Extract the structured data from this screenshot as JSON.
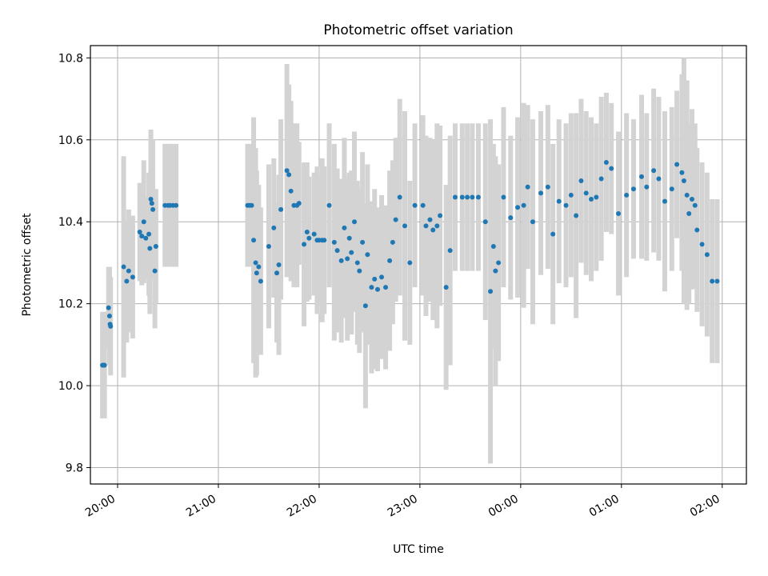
{
  "chart_data": {
    "type": "scatter",
    "title": "Photometric offset variation",
    "xlabel": "UTC time",
    "ylabel": "Photometric offset",
    "x_ticks": [
      "20:00",
      "21:00",
      "22:00",
      "23:00",
      "00:00",
      "01:00",
      "02:00"
    ],
    "y_ticks": [
      "9.8",
      "10.0",
      "10.2",
      "10.4",
      "10.6",
      "10.8"
    ],
    "xlim_hours": [
      19.73,
      26.24
    ],
    "ylim": [
      9.76,
      10.83
    ],
    "grid": true,
    "colors": {
      "point": "#1f77b4",
      "errorbar": "#d3d3d3"
    },
    "series": [
      {
        "x_hours": [
          19.85,
          19.86,
          19.87,
          19.91,
          19.92,
          19.925,
          19.93,
          20.06,
          20.09,
          20.11,
          20.15,
          20.22,
          20.24,
          20.26,
          20.28,
          20.31,
          20.32,
          20.33,
          20.34,
          20.35,
          20.37,
          20.38,
          20.47,
          20.5,
          20.52,
          20.55,
          20.58,
          21.29,
          21.31,
          21.33,
          21.35,
          21.37,
          21.38,
          21.4,
          21.42,
          21.5,
          21.55,
          21.58,
          21.6,
          21.62,
          21.68,
          21.7,
          21.72,
          21.75,
          21.78,
          21.8,
          21.85,
          21.88,
          21.9,
          21.95,
          21.98,
          22.0,
          22.03,
          22.05,
          22.1,
          22.15,
          22.18,
          22.22,
          22.25,
          22.28,
          22.3,
          22.32,
          22.35,
          22.38,
          22.4,
          22.43,
          22.46,
          22.48,
          22.52,
          22.55,
          22.58,
          22.62,
          22.66,
          22.7,
          22.73,
          22.76,
          22.8,
          22.85,
          22.9,
          22.95,
          23.03,
          23.06,
          23.1,
          23.13,
          23.17,
          23.2,
          23.26,
          23.3,
          23.35,
          23.42,
          23.47,
          23.52,
          23.58,
          23.65,
          23.7,
          23.73,
          23.75,
          23.78,
          23.83,
          23.9,
          23.97,
          24.03,
          24.07,
          24.12,
          24.2,
          24.27,
          24.32,
          24.38,
          24.45,
          24.5,
          24.55,
          24.6,
          24.65,
          24.7,
          24.75,
          24.8,
          24.85,
          24.9,
          24.97,
          25.05,
          25.12,
          25.2,
          25.25,
          25.32,
          25.37,
          25.43,
          25.5,
          25.55,
          25.6,
          25.62,
          25.65,
          25.67,
          25.7,
          25.73,
          25.75,
          25.8,
          25.85,
          25.9,
          25.95
        ],
        "y": [
          10.05,
          10.05,
          10.05,
          10.19,
          10.17,
          10.15,
          10.145,
          10.29,
          10.255,
          10.28,
          10.265,
          10.375,
          10.365,
          10.4,
          10.36,
          10.37,
          10.335,
          10.455,
          10.445,
          10.43,
          10.28,
          10.34,
          10.44,
          10.44,
          10.44,
          10.44,
          10.44,
          10.44,
          10.44,
          10.44,
          10.355,
          10.3,
          10.275,
          10.29,
          10.255,
          10.34,
          10.385,
          10.275,
          10.295,
          10.43,
          10.525,
          10.515,
          10.475,
          10.44,
          10.44,
          10.445,
          10.345,
          10.375,
          10.36,
          10.37,
          10.355,
          10.355,
          10.355,
          10.355,
          10.44,
          10.35,
          10.33,
          10.305,
          10.385,
          10.31,
          10.36,
          10.325,
          10.4,
          10.3,
          10.28,
          10.35,
          10.195,
          10.32,
          10.24,
          10.26,
          10.235,
          10.265,
          10.24,
          10.305,
          10.35,
          10.405,
          10.46,
          10.39,
          10.3,
          10.44,
          10.44,
          10.39,
          10.405,
          10.38,
          10.39,
          10.415,
          10.24,
          10.33,
          10.46,
          10.46,
          10.46,
          10.46,
          10.46,
          10.4,
          10.23,
          10.34,
          10.28,
          10.3,
          10.46,
          10.41,
          10.435,
          10.44,
          10.485,
          10.4,
          10.47,
          10.485,
          10.37,
          10.45,
          10.44,
          10.465,
          10.415,
          10.5,
          10.47,
          10.455,
          10.46,
          10.505,
          10.545,
          10.53,
          10.42,
          10.465,
          10.48,
          10.51,
          10.485,
          10.525,
          10.505,
          10.45,
          10.48,
          10.54,
          10.52,
          10.5,
          10.465,
          10.42,
          10.455,
          10.44,
          10.38,
          10.345,
          10.32,
          10.255,
          10.255
        ],
        "err": [
          0.13,
          0.13,
          0.13,
          0.1,
          0.12,
          0.1,
          0.12,
          0.27,
          0.15,
          0.15,
          0.15,
          0.12,
          0.12,
          0.15,
          0.1,
          0.15,
          0.16,
          0.17,
          0.15,
          0.17,
          0.14,
          0.14,
          0.15,
          0.15,
          0.15,
          0.15,
          0.15,
          0.15,
          0.15,
          0.15,
          0.3,
          0.28,
          0.25,
          0.2,
          0.18,
          0.2,
          0.17,
          0.17,
          0.22,
          0.22,
          0.26,
          0.22,
          0.22,
          0.2,
          0.2,
          0.15,
          0.2,
          0.17,
          0.15,
          0.15,
          0.18,
          0.16,
          0.2,
          0.18,
          0.2,
          0.24,
          0.2,
          0.2,
          0.22,
          0.2,
          0.16,
          0.2,
          0.22,
          0.2,
          0.2,
          0.22,
          0.25,
          0.22,
          0.21,
          0.22,
          0.2,
          0.2,
          0.2,
          0.22,
          0.2,
          0.2,
          0.24,
          0.28,
          0.2,
          0.2,
          0.22,
          0.22,
          0.2,
          0.22,
          0.25,
          0.22,
          0.25,
          0.28,
          0.18,
          0.18,
          0.18,
          0.18,
          0.18,
          0.24,
          0.42,
          0.25,
          0.28,
          0.24,
          0.22,
          0.2,
          0.22,
          0.25,
          0.2,
          0.25,
          0.2,
          0.2,
          0.22,
          0.2,
          0.2,
          0.2,
          0.25,
          0.2,
          0.2,
          0.2,
          0.18,
          0.2,
          0.17,
          0.16,
          0.2,
          0.2,
          0.17,
          0.2,
          0.18,
          0.2,
          0.2,
          0.22,
          0.2,
          0.18,
          0.24,
          0.3,
          0.28,
          0.22,
          0.22,
          0.2,
          0.2,
          0.2,
          0.2,
          0.2,
          0.2
        ]
      }
    ]
  }
}
